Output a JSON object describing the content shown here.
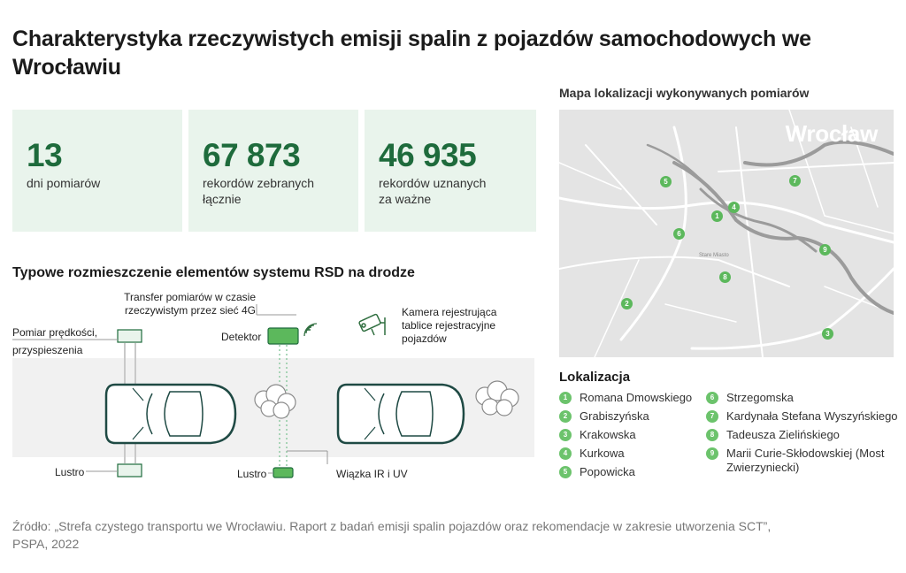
{
  "title": "Charakterystyka rzeczywistych emisji spalin z pojazdów samochodowych we Wrocławiu",
  "stats": [
    {
      "number": "13",
      "label": "dni pomiarów"
    },
    {
      "number": "67 873",
      "label": "rekordów zebranych łącznie"
    },
    {
      "number": "46 935",
      "label": "rekordów uznanych za ważne"
    }
  ],
  "rsd": {
    "title": "Typowe rozmieszczenie elementów systemu RSD na drodze",
    "labels": {
      "transfer": "Transfer pomiarów w czasie rzeczywistym przez sieć 4G",
      "speed": "Pomiar prędkości, przyspieszenia",
      "detector": "Detektor",
      "camera": "Kamera rejestrująca tablice rejestracyjne pojazdów",
      "mirror_left": "Lustro",
      "mirror_right": "Lustro",
      "beam": "Wiązka IR i UV"
    }
  },
  "map": {
    "title": "Mapa lokalizacji wykonywanych pomiarów",
    "city": "Wrocław",
    "center_label": "Stare Miasto",
    "pins": [
      "1",
      "2",
      "3",
      "4",
      "5",
      "6",
      "7",
      "8",
      "9"
    ]
  },
  "locations": {
    "title": "Lokalizacja",
    "items": [
      {
        "n": "1",
        "name": "Romana Dmowskiego"
      },
      {
        "n": "2",
        "name": "Grabiszyńska"
      },
      {
        "n": "3",
        "name": "Krakowska"
      },
      {
        "n": "4",
        "name": "Kurkowa"
      },
      {
        "n": "5",
        "name": "Popowicka"
      },
      {
        "n": "6",
        "name": "Strzegomska"
      },
      {
        "n": "7",
        "name": "Kardynała Stefana Wyszyńskiego"
      },
      {
        "n": "8",
        "name": "Tadeusza Zielińskiego"
      },
      {
        "n": "9",
        "name": "Marii Curie-Skłodowskiej (Most Zwierzyniecki)"
      }
    ]
  },
  "source": "Źródło: „Strefa czystego transportu we Wrocławiu. Raport z badań emisji spalin pojazdów oraz rekomendacje w zakresie utworzenia SCT”, PSPA, 2022",
  "colors": {
    "accent_green": "#1e6b3c",
    "stat_bg": "#e9f4ec",
    "pin_green": "#5cb85c",
    "car_outline": "#1f4a44"
  }
}
